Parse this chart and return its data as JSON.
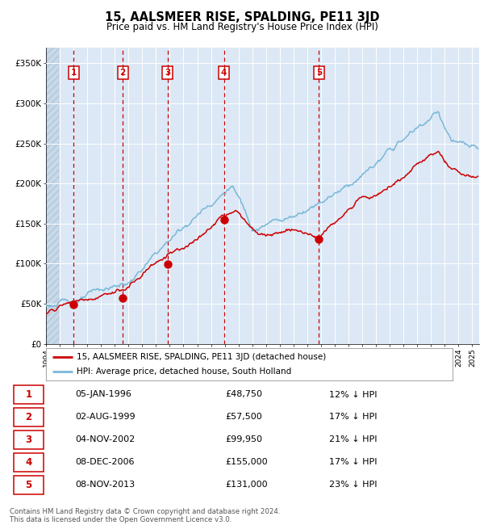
{
  "title": "15, AALSMEER RISE, SPALDING, PE11 3JD",
  "subtitle": "Price paid vs. HM Land Registry's House Price Index (HPI)",
  "ylim": [
    0,
    370000
  ],
  "yticks": [
    0,
    50000,
    100000,
    150000,
    200000,
    250000,
    300000,
    350000
  ],
  "ytick_labels": [
    "£0",
    "£50K",
    "£100K",
    "£150K",
    "£200K",
    "£250K",
    "£300K",
    "£350K"
  ],
  "hpi_color": "#7ab8d9",
  "price_color": "#cc0000",
  "plot_bg": "#dce8f5",
  "grid_color": "#ffffff",
  "vline_color": "#cc0000",
  "sale_dates": [
    "1996-01-05",
    "1999-08-02",
    "2002-11-04",
    "2006-12-08",
    "2013-11-08"
  ],
  "sale_prices": [
    48750,
    57500,
    99950,
    155000,
    131000
  ],
  "sale_labels": [
    "1",
    "2",
    "3",
    "4",
    "5"
  ],
  "table_dates": [
    "05-JAN-1996",
    "02-AUG-1999",
    "04-NOV-2002",
    "08-DEC-2006",
    "08-NOV-2013"
  ],
  "table_prices": [
    "£48,750",
    "£57,500",
    "£99,950",
    "£155,000",
    "£131,000"
  ],
  "table_pct": [
    "12% ↓ HPI",
    "17% ↓ HPI",
    "21% ↓ HPI",
    "17% ↓ HPI",
    "23% ↓ HPI"
  ],
  "legend_label1": "15, AALSMEER RISE, SPALDING, PE11 3JD (detached house)",
  "legend_label2": "HPI: Average price, detached house, South Holland",
  "footer": "Contains HM Land Registry data © Crown copyright and database right 2024.\nThis data is licensed under the Open Government Licence v3.0.",
  "xstart": 1994.0,
  "xend": 2025.5
}
